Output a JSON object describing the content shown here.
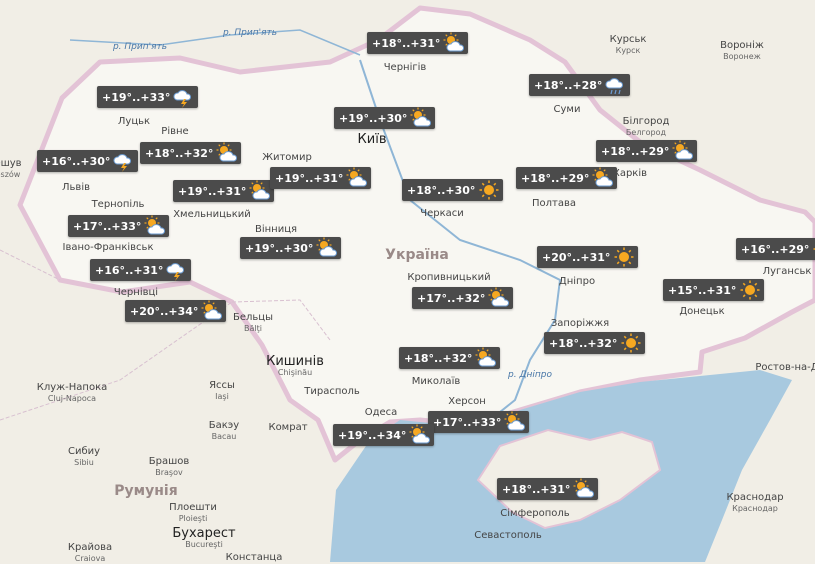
{
  "places": [
    {
      "name": "р. Прип'ять"
    },
    {
      "name": "р. Прип'ять"
    },
    {
      "name": "Чернігів"
    },
    {
      "name": "Курськ",
      "alt": "Курск"
    },
    {
      "name": "Воронiж",
      "alt": "Воронеж"
    },
    {
      "name": "Луцьк"
    },
    {
      "name": "Рівне"
    },
    {
      "name": "Київ"
    },
    {
      "name": "Житомир"
    },
    {
      "name": "Суми"
    },
    {
      "name": "Бiлгород",
      "alt": "Белгород"
    },
    {
      "name": "ешув",
      "alt": "eszów"
    },
    {
      "name": "Львів"
    },
    {
      "name": "Тернопіль"
    },
    {
      "name": "Хмельницький"
    },
    {
      "name": "Вінниця"
    },
    {
      "name": "Черкаси"
    },
    {
      "name": "Полтава"
    },
    {
      "name": "Харків"
    },
    {
      "name": "Україна"
    },
    {
      "name": "Івано-Франківськ"
    },
    {
      "name": "Чернівці"
    },
    {
      "name": "Кропивницький"
    },
    {
      "name": "Дніпро"
    },
    {
      "name": "Луганськ"
    },
    {
      "name": "Донецьк"
    },
    {
      "name": "Бельцы",
      "alt": "Bălţi"
    },
    {
      "name": "Кишинів",
      "alt": "Chişinău"
    },
    {
      "name": "Запоріжжя"
    },
    {
      "name": "Тирасполь"
    },
    {
      "name": "Миколаїв"
    },
    {
      "name": "Херсон"
    },
    {
      "name": "Одеса"
    },
    {
      "name": "р. Дніпро"
    },
    {
      "name": "Ростов-на-До"
    },
    {
      "name": "Клуж-Напока",
      "alt": "Cluj-Napoca"
    },
    {
      "name": "Яссы",
      "alt": "Iaşi"
    },
    {
      "name": "Бакэу",
      "alt": "Bacau"
    },
    {
      "name": "Комрат"
    },
    {
      "name": "Сибиу",
      "alt": "Sibiu"
    },
    {
      "name": "Брашов",
      "alt": "Braşov"
    },
    {
      "name": "Румунія"
    },
    {
      "name": "Плоешти",
      "alt": "Ploieşti"
    },
    {
      "name": "Краснодар",
      "alt": "Краснодар"
    },
    {
      "name": "Сімферополь"
    },
    {
      "name": "Севастополь"
    },
    {
      "name": "Бухарест",
      "alt": "Bucureşti"
    },
    {
      "name": "Крайова",
      "alt": "Craiova"
    },
    {
      "name": "Констанца"
    }
  ],
  "forecasts": [
    {
      "temp": "+18°..+31°",
      "icon": "sun-cloud"
    },
    {
      "temp": "+19°..+33°",
      "icon": "storm"
    },
    {
      "temp": "+18°..+28°",
      "icon": "cloud-rain"
    },
    {
      "temp": "+19°..+30°",
      "icon": "sun-cloud"
    },
    {
      "temp": "+16°..+30°",
      "icon": "storm"
    },
    {
      "temp": "+18°..+32°",
      "icon": "sun-cloud"
    },
    {
      "temp": "+18°..+29°",
      "icon": "sun-cloud"
    },
    {
      "temp": "+19°..+31°",
      "icon": "sun-cloud"
    },
    {
      "temp": "+19°..+31°",
      "icon": "sun-cloud"
    },
    {
      "temp": "+18°..+30°",
      "icon": "sun"
    },
    {
      "temp": "+18°..+29°",
      "icon": "sun-cloud"
    },
    {
      "temp": "+17°..+33°",
      "icon": "sun-cloud"
    },
    {
      "temp": "+16°..+29°",
      "icon": "sun"
    },
    {
      "temp": "+19°..+30°",
      "icon": "sun-cloud"
    },
    {
      "temp": "+20°..+31°",
      "icon": "sun"
    },
    {
      "temp": "+16°..+31°",
      "icon": "storm"
    },
    {
      "temp": "+15°..+31°",
      "icon": "sun"
    },
    {
      "temp": "+17°..+32°",
      "icon": "sun-cloud"
    },
    {
      "temp": "+20°..+34°",
      "icon": "sun-cloud"
    },
    {
      "temp": "+18°..+32°",
      "icon": "sun"
    },
    {
      "temp": "+18°..+32°",
      "icon": "sun-cloud"
    },
    {
      "temp": "+17°..+33°",
      "icon": "sun-cloud"
    },
    {
      "temp": "+19°..+34°",
      "icon": "sun-cloud"
    },
    {
      "temp": "+18°..+31°",
      "icon": "sun-cloud"
    }
  ]
}
